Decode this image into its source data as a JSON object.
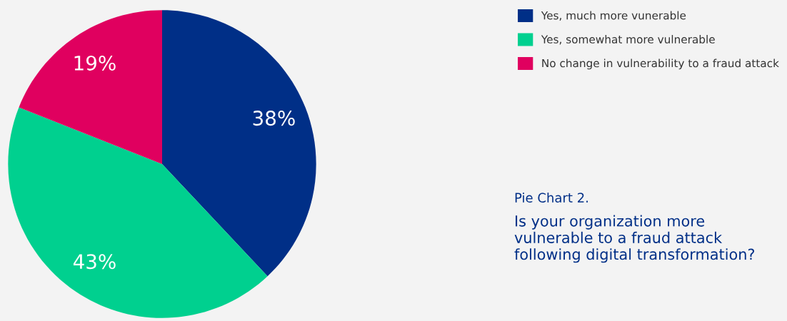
{
  "chart_data": {
    "type": "pie",
    "subtitle": "Pie Chart 2.",
    "title": "Is your organization more vulnerable to a fraud attack following digital transformation?",
    "categories": [
      "Yes, much more vunerable",
      "Yes, somewhat more vulnerable",
      "No change in vulnerability to a fraud attack"
    ],
    "values": [
      38,
      43,
      19
    ],
    "colors": [
      "#002f87",
      "#00d08f",
      "#e0005f"
    ],
    "value_labels": [
      "38%",
      "43%",
      "19%"
    ],
    "legend": "top right"
  }
}
